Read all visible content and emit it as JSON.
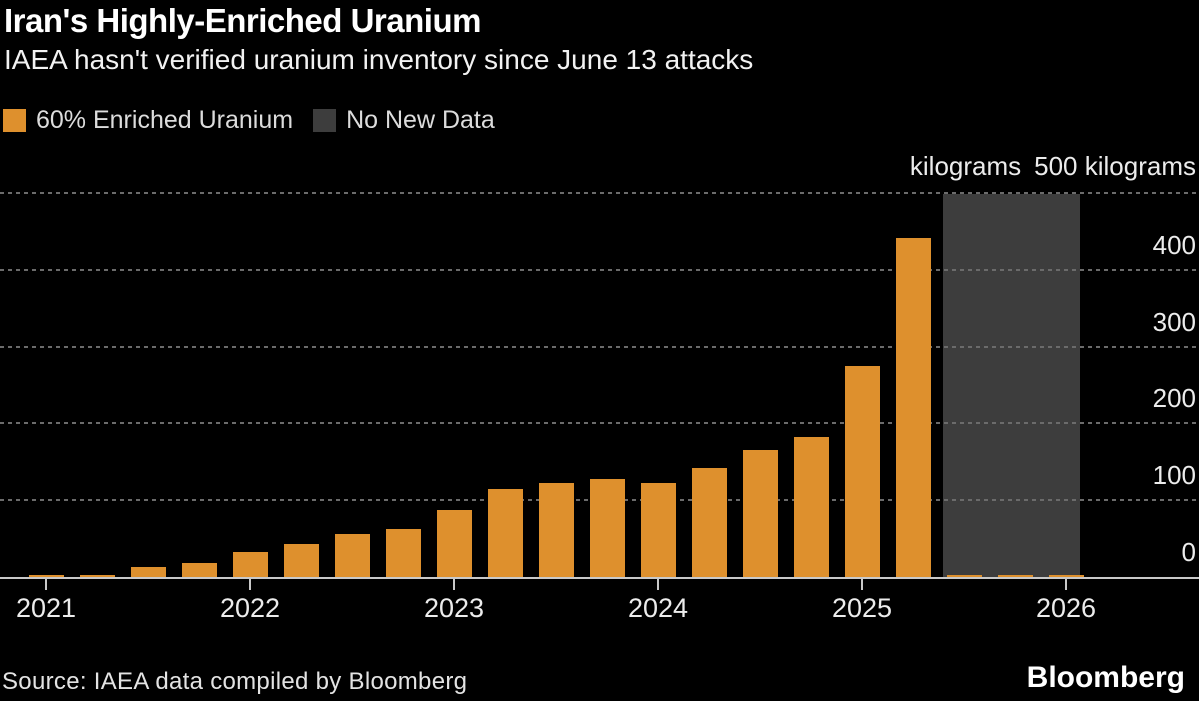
{
  "header": {
    "title": "Iran's Highly-Enriched Uranium",
    "subtitle": "IAEA hasn't verified uranium inventory since June 13 attacks"
  },
  "legend": [
    {
      "label": "60% Enriched Uranium",
      "color": "#DE902D"
    },
    {
      "label": "No New Data",
      "color": "#3D3D3D"
    }
  ],
  "axis": {
    "unit_label": "kilograms",
    "top_tick_label": "500 kilograms",
    "y_ticks": [
      "400",
      "300",
      "200",
      "100",
      "0"
    ],
    "x_ticks": [
      "2021",
      "2022",
      "2023",
      "2024",
      "2025",
      "2026"
    ]
  },
  "colors": {
    "background": "#000000",
    "bar": "#DE902D",
    "band": "#3D3D3D",
    "gridline": "#6B6B6B",
    "axis_line": "#C9C9C9",
    "text": "#FFFFFF"
  },
  "chart_data": {
    "type": "bar",
    "title": "Iran's Highly-Enriched Uranium",
    "subtitle": "IAEA hasn't verified uranium inventory since June 13 attacks",
    "ylabel": "kilograms",
    "ylim": [
      0,
      500
    ],
    "grid": "horizontal-dotted",
    "legend_position": "top-left",
    "categories": [
      "2021 Q1",
      "2021 Q2",
      "2021 Q3",
      "2021 Q4",
      "2022 Q1",
      "2022 Q2",
      "2022 Q3",
      "2022 Q4",
      "2023 Q1",
      "2023 Q2",
      "2023 Q3",
      "2023 Q4",
      "2024 Q1",
      "2024 Q2",
      "2024 Q3",
      "2024 Q4",
      "2025 Q1",
      "2025 Q2",
      "2025 Q3",
      "2025 Q4",
      "2026 Q1"
    ],
    "series": [
      {
        "name": "60% Enriched Uranium",
        "values": [
          2,
          3,
          13,
          18,
          33,
          43,
          56,
          62,
          87,
          114,
          122,
          128,
          122,
          142,
          165,
          182,
          275,
          441,
          2,
          2,
          2
        ]
      }
    ],
    "no_new_data_band": {
      "label": "No New Data",
      "start_index": 18,
      "end_index": 20,
      "note": "gray shaded region; last three quarters show only baseline slivers"
    }
  },
  "footer": {
    "source": "Source: IAEA data compiled by Bloomberg",
    "brand": "Bloomberg"
  }
}
